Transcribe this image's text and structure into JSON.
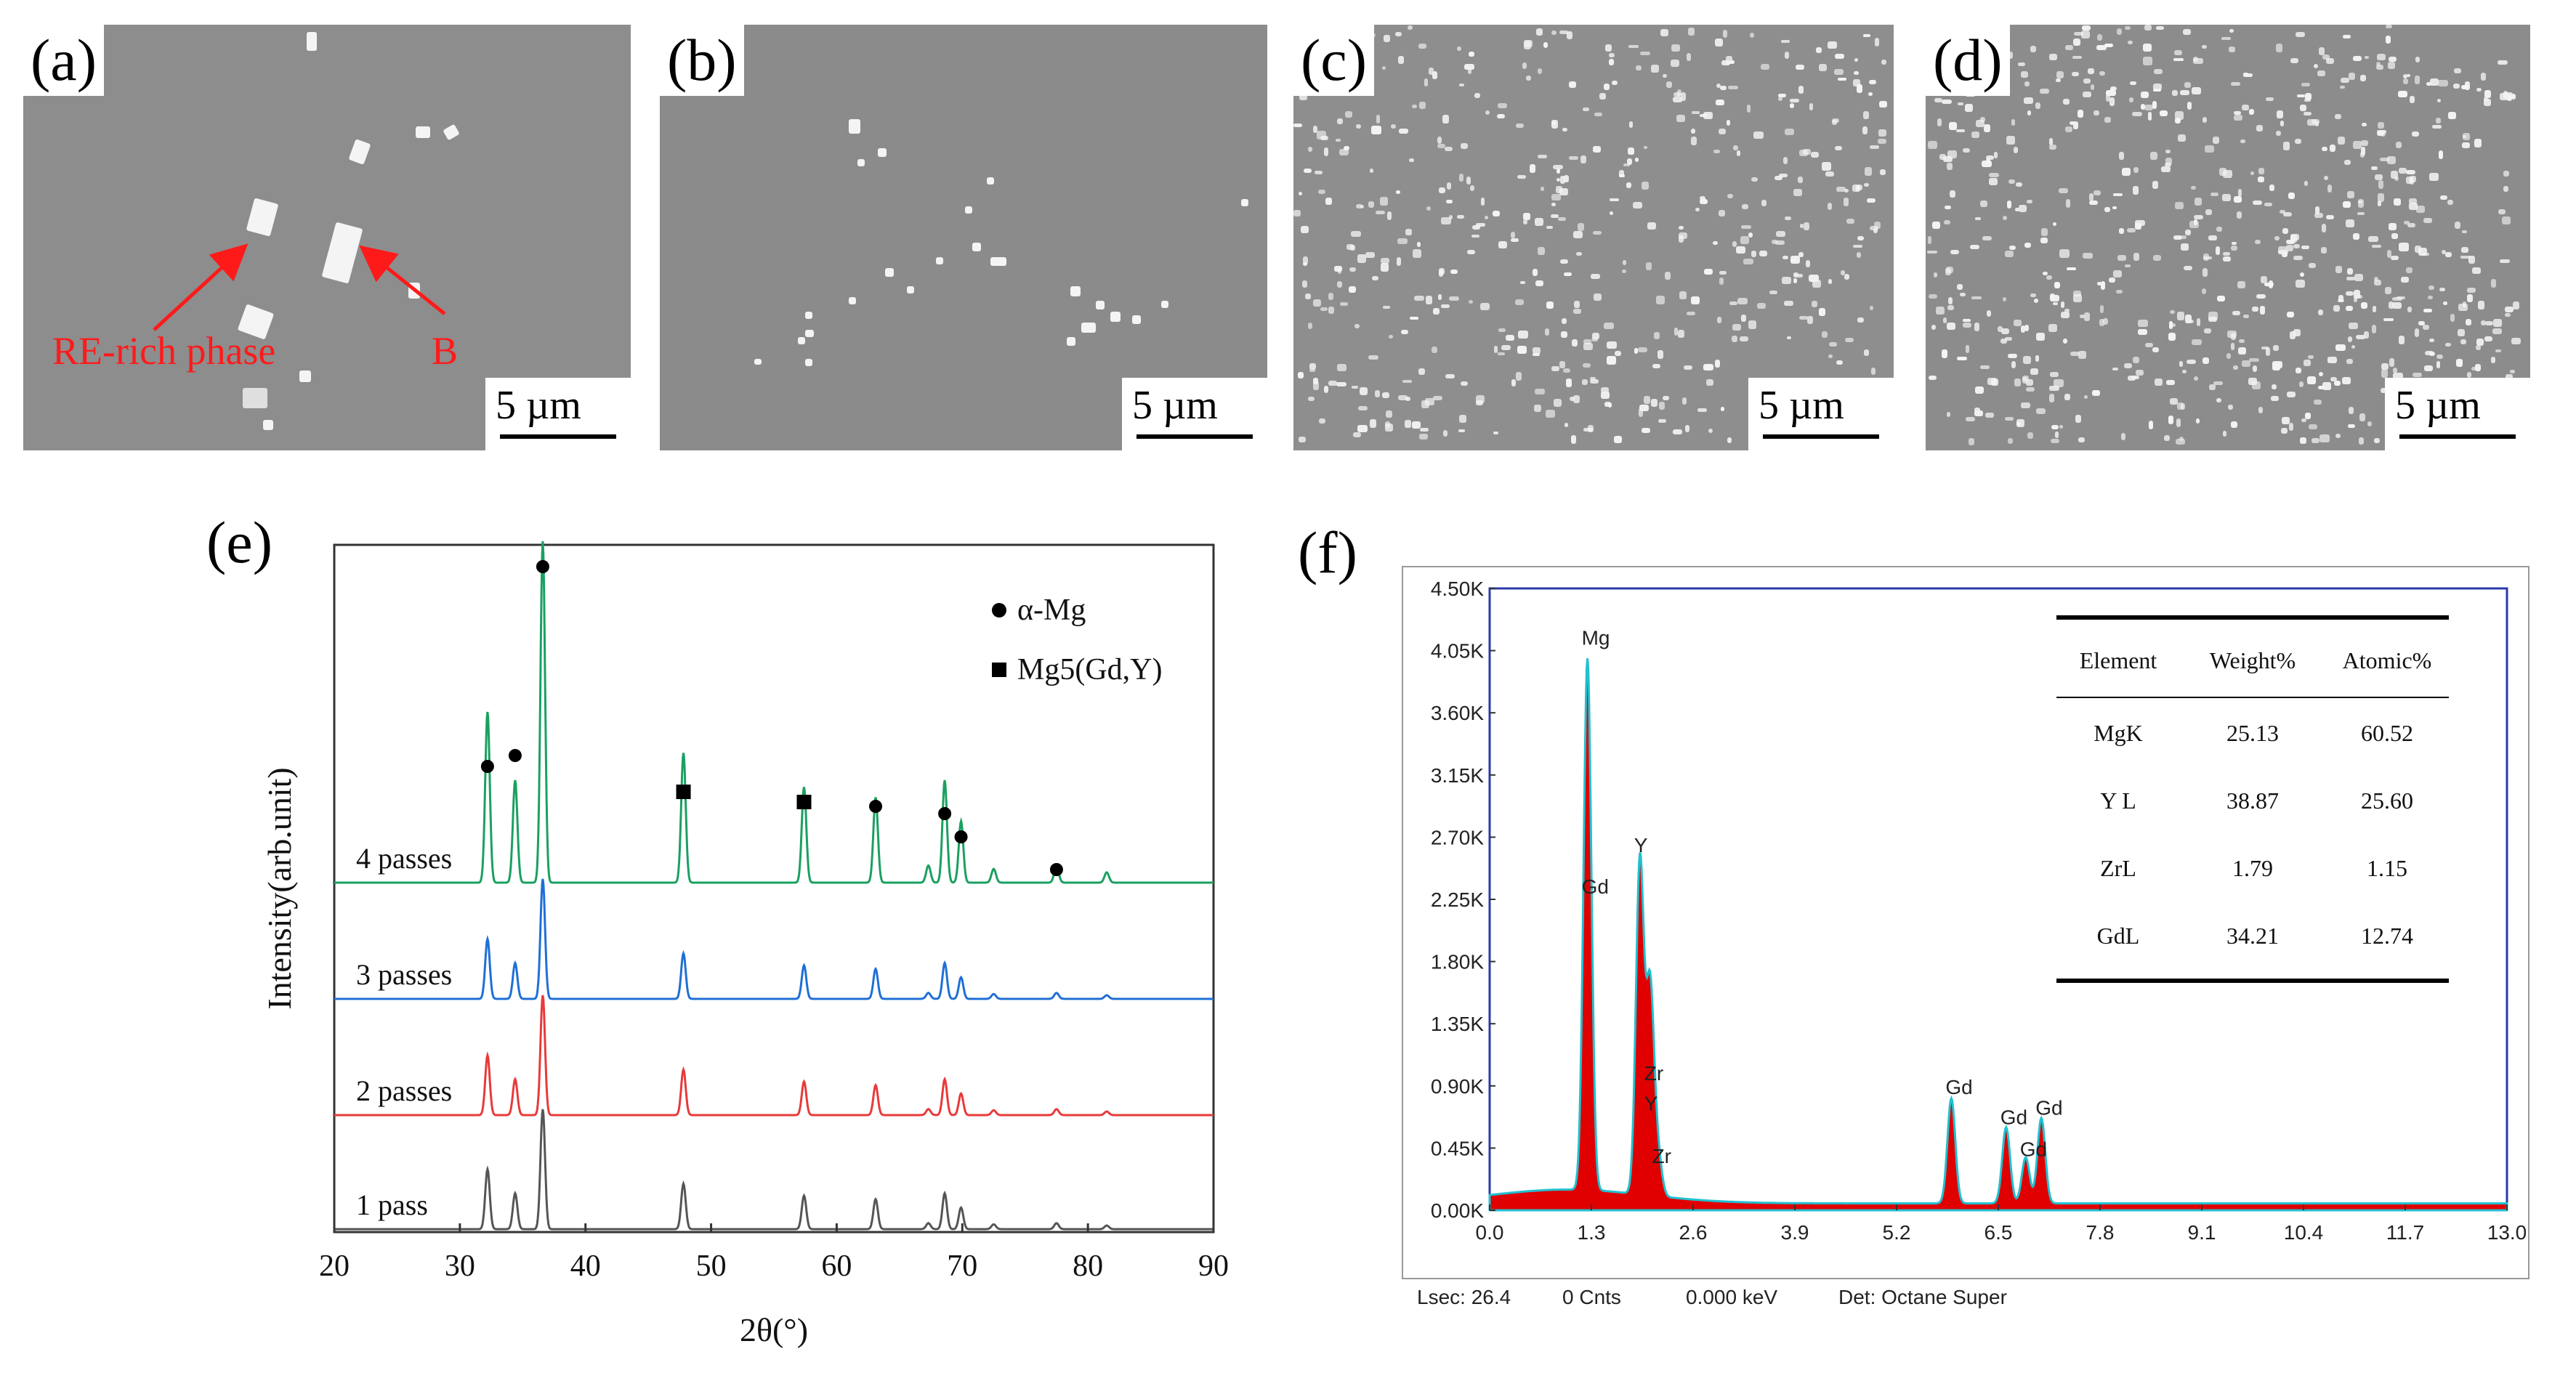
{
  "panels": {
    "a": {
      "label": "(a)",
      "scale": "5 µm",
      "annotation_rich": "RE-rich phase",
      "annotation_b": "B"
    },
    "b": {
      "label": "(b)",
      "scale": "5 µm"
    },
    "c": {
      "label": "(c)",
      "scale": "5 µm"
    },
    "d": {
      "label": "(d)",
      "scale": "5 µm"
    },
    "e": {
      "label": "(e)"
    },
    "f": {
      "label": "(f)"
    }
  },
  "chart_data": [
    {
      "type": "line",
      "title": "",
      "xlabel": "2θ(°)",
      "ylabel": "Intensity(arb.unit)",
      "xlim": [
        20,
        90
      ],
      "xticks": [
        "20",
        "30",
        "40",
        "50",
        "60",
        "70",
        "80",
        "90"
      ],
      "series": [
        {
          "name": "1 pass",
          "color": "#555555"
        },
        {
          "name": "2 passes",
          "color": "#e83a3a"
        },
        {
          "name": "3 passes",
          "color": "#1f6fd6"
        },
        {
          "name": "4 passes",
          "color": "#1aa060"
        }
      ],
      "peaks_2theta": [
        32.2,
        34.4,
        36.6,
        47.8,
        57.4,
        63.1,
        67.3,
        68.6,
        69.9,
        72.5,
        77.5,
        81.5
      ],
      "peak_heights": [
        0.5,
        0.3,
        1.0,
        0.38,
        0.28,
        0.25,
        0.05,
        0.3,
        0.18,
        0.04,
        0.05,
        0.03
      ],
      "legend": [
        {
          "marker": "circle",
          "label": "α-Mg"
        },
        {
          "marker": "square",
          "label": "Mg5(Gd,Y)"
        }
      ],
      "markers": {
        "circle": [
          32.2,
          34.4,
          36.6,
          63.1,
          68.6,
          69.9,
          77.5
        ],
        "square": [
          47.8,
          57.4
        ]
      }
    },
    {
      "type": "area",
      "title": "",
      "yticks": [
        "0.00K",
        "0.45K",
        "0.90K",
        "1.35K",
        "1.80K",
        "2.25K",
        "2.70K",
        "3.15K",
        "3.60K",
        "4.05K",
        "4.50K"
      ],
      "xticks": [
        "0.0",
        "1.3",
        "2.6",
        "3.9",
        "5.2",
        "6.5",
        "7.8",
        "9.1",
        "10.4",
        "11.7",
        "13.0"
      ],
      "xlim": [
        0,
        13.0
      ],
      "ylim": [
        0,
        4.5
      ],
      "peaks": [
        {
          "x": 1.25,
          "y": 4.05,
          "label": "Mg"
        },
        {
          "x": 1.25,
          "y": 2.25,
          "label": "Gd"
        },
        {
          "x": 1.92,
          "y": 2.55,
          "label": "Y"
        },
        {
          "x": 2.05,
          "y": 0.9,
          "label": "Zr"
        },
        {
          "x": 2.05,
          "y": 0.68,
          "label": "Y"
        },
        {
          "x": 2.15,
          "y": 0.3,
          "label": "Zr"
        },
        {
          "x": 5.9,
          "y": 0.8,
          "label": "Gd"
        },
        {
          "x": 6.6,
          "y": 0.58,
          "label": "Gd"
        },
        {
          "x": 6.85,
          "y": 0.35,
          "label": "Gd"
        },
        {
          "x": 7.05,
          "y": 0.65,
          "label": "Gd"
        }
      ],
      "footer": [
        "Lsec: 26.4",
        "0 Cnts",
        "0.000 keV",
        "Det: Octane Super"
      ],
      "table": {
        "headers": [
          "Element",
          "Weight%",
          "Atomic%"
        ],
        "rows": [
          [
            "MgK",
            "25.13",
            "60.52"
          ],
          [
            "Y L",
            "38.87",
            "25.60"
          ],
          [
            "ZrL",
            "1.79",
            "1.15"
          ],
          [
            "GdL",
            "34.21",
            "12.74"
          ]
        ]
      }
    }
  ]
}
